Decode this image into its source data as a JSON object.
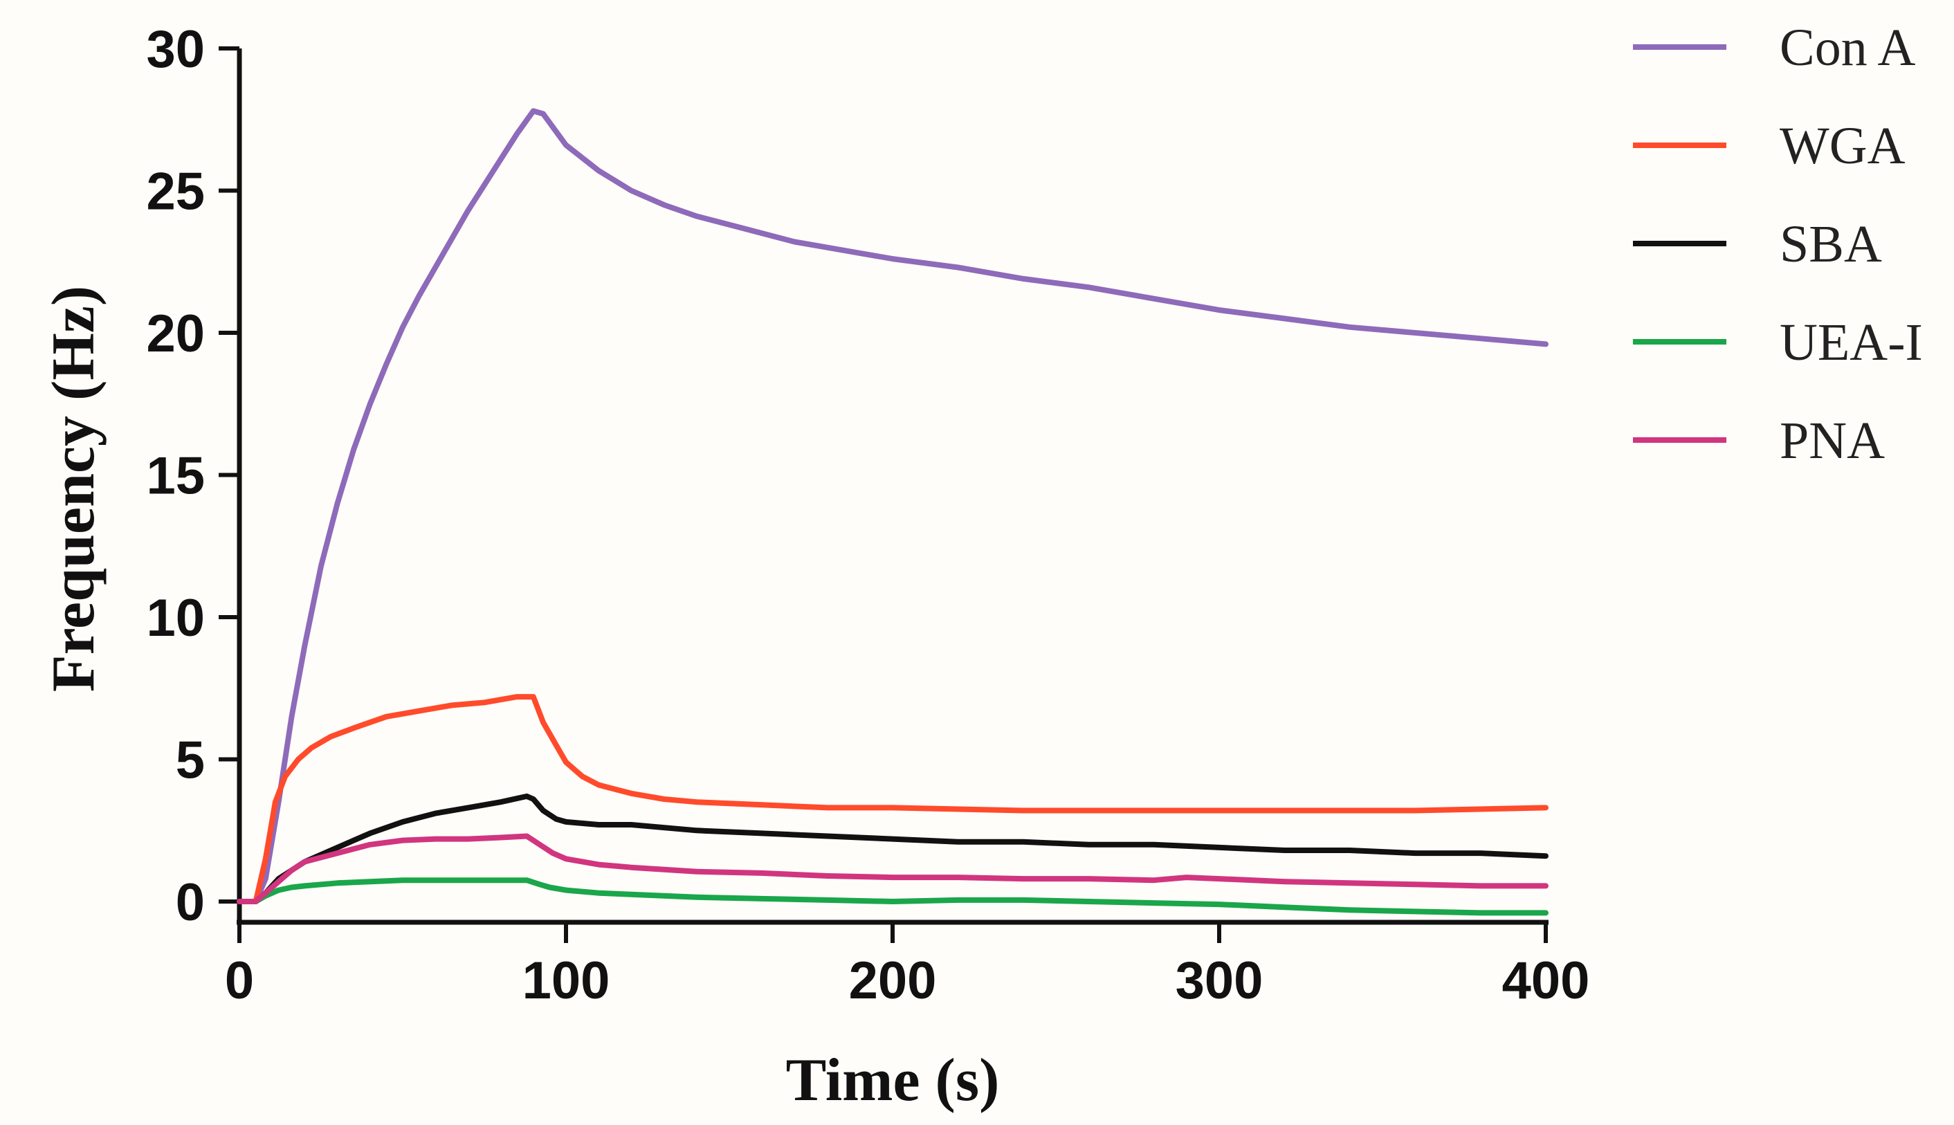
{
  "chart_data": {
    "type": "line",
    "title": "",
    "xlabel": "Time (s)",
    "ylabel": "Frequency (Hz)",
    "xlim": [
      0,
      400
    ],
    "ylim": [
      0,
      30
    ],
    "xticks": [
      0,
      100,
      200,
      300,
      400
    ],
    "yticks": [
      0,
      5,
      10,
      15,
      20,
      25,
      30
    ],
    "xtick_labels": [
      "0",
      "100",
      "200",
      "300",
      "400"
    ],
    "ytick_labels": [
      "0",
      "5",
      "10",
      "15",
      "20",
      "25",
      "30"
    ],
    "grid": false,
    "legend_position": "right",
    "series": [
      {
        "name": "Con A",
        "color": "#8e6aba",
        "points": [
          [
            0,
            0
          ],
          [
            5,
            0
          ],
          [
            8,
            0.8
          ],
          [
            12,
            3.5
          ],
          [
            16,
            6.5
          ],
          [
            20,
            9
          ],
          [
            25,
            11.8
          ],
          [
            30,
            14
          ],
          [
            35,
            15.9
          ],
          [
            40,
            17.5
          ],
          [
            45,
            18.9
          ],
          [
            50,
            20.2
          ],
          [
            55,
            21.3
          ],
          [
            60,
            22.3
          ],
          [
            65,
            23.3
          ],
          [
            70,
            24.3
          ],
          [
            75,
            25.2
          ],
          [
            80,
            26.1
          ],
          [
            85,
            27
          ],
          [
            90,
            27.8
          ],
          [
            93,
            27.7
          ],
          [
            100,
            26.6
          ],
          [
            110,
            25.7
          ],
          [
            120,
            25
          ],
          [
            130,
            24.5
          ],
          [
            140,
            24.1
          ],
          [
            150,
            23.8
          ],
          [
            160,
            23.5
          ],
          [
            170,
            23.2
          ],
          [
            180,
            23
          ],
          [
            190,
            22.8
          ],
          [
            200,
            22.6
          ],
          [
            220,
            22.3
          ],
          [
            240,
            21.9
          ],
          [
            260,
            21.6
          ],
          [
            280,
            21.2
          ],
          [
            300,
            20.8
          ],
          [
            320,
            20.5
          ],
          [
            340,
            20.2
          ],
          [
            360,
            20
          ],
          [
            380,
            19.8
          ],
          [
            400,
            19.6
          ]
        ]
      },
      {
        "name": "WGA",
        "color": "#ff4b2b",
        "points": [
          [
            0,
            0
          ],
          [
            5,
            0
          ],
          [
            8,
            1.5
          ],
          [
            11,
            3.5
          ],
          [
            14,
            4.4
          ],
          [
            18,
            5
          ],
          [
            22,
            5.4
          ],
          [
            28,
            5.8
          ],
          [
            35,
            6.1
          ],
          [
            45,
            6.5
          ],
          [
            55,
            6.7
          ],
          [
            65,
            6.9
          ],
          [
            75,
            7
          ],
          [
            85,
            7.2
          ],
          [
            90,
            7.2
          ],
          [
            93,
            6.3
          ],
          [
            97,
            5.5
          ],
          [
            100,
            4.9
          ],
          [
            105,
            4.4
          ],
          [
            110,
            4.1
          ],
          [
            120,
            3.8
          ],
          [
            130,
            3.6
          ],
          [
            140,
            3.5
          ],
          [
            160,
            3.4
          ],
          [
            180,
            3.3
          ],
          [
            200,
            3.3
          ],
          [
            240,
            3.2
          ],
          [
            280,
            3.2
          ],
          [
            320,
            3.2
          ],
          [
            360,
            3.2
          ],
          [
            400,
            3.3
          ]
        ]
      },
      {
        "name": "SBA",
        "color": "#111111",
        "points": [
          [
            0,
            0
          ],
          [
            5,
            0
          ],
          [
            8,
            0.3
          ],
          [
            12,
            0.8
          ],
          [
            16,
            1.1
          ],
          [
            20,
            1.4
          ],
          [
            30,
            1.9
          ],
          [
            40,
            2.4
          ],
          [
            50,
            2.8
          ],
          [
            60,
            3.1
          ],
          [
            70,
            3.3
          ],
          [
            80,
            3.5
          ],
          [
            88,
            3.7
          ],
          [
            90,
            3.6
          ],
          [
            93,
            3.2
          ],
          [
            97,
            2.9
          ],
          [
            100,
            2.8
          ],
          [
            110,
            2.7
          ],
          [
            120,
            2.7
          ],
          [
            140,
            2.5
          ],
          [
            160,
            2.4
          ],
          [
            180,
            2.3
          ],
          [
            200,
            2.2
          ],
          [
            220,
            2.1
          ],
          [
            240,
            2.1
          ],
          [
            260,
            2
          ],
          [
            280,
            2
          ],
          [
            300,
            1.9
          ],
          [
            320,
            1.8
          ],
          [
            340,
            1.8
          ],
          [
            360,
            1.7
          ],
          [
            380,
            1.7
          ],
          [
            400,
            1.6
          ]
        ]
      },
      {
        "name": "UEA-I",
        "color": "#1aa64a",
        "points": [
          [
            0,
            0
          ],
          [
            5,
            0
          ],
          [
            8,
            0.2
          ],
          [
            12,
            0.4
          ],
          [
            16,
            0.5
          ],
          [
            20,
            0.55
          ],
          [
            30,
            0.65
          ],
          [
            40,
            0.7
          ],
          [
            50,
            0.75
          ],
          [
            60,
            0.75
          ],
          [
            70,
            0.75
          ],
          [
            80,
            0.75
          ],
          [
            88,
            0.75
          ],
          [
            92,
            0.6
          ],
          [
            95,
            0.5
          ],
          [
            100,
            0.4
          ],
          [
            110,
            0.3
          ],
          [
            120,
            0.25
          ],
          [
            140,
            0.15
          ],
          [
            160,
            0.1
          ],
          [
            180,
            0.05
          ],
          [
            200,
            0
          ],
          [
            220,
            0.05
          ],
          [
            240,
            0.05
          ],
          [
            260,
            0
          ],
          [
            280,
            -0.05
          ],
          [
            300,
            -0.1
          ],
          [
            320,
            -0.2
          ],
          [
            340,
            -0.3
          ],
          [
            360,
            -0.35
          ],
          [
            380,
            -0.4
          ],
          [
            400,
            -0.4
          ]
        ]
      },
      {
        "name": "PNA",
        "color": "#d1357f",
        "points": [
          [
            0,
            0
          ],
          [
            5,
            0
          ],
          [
            8,
            0.3
          ],
          [
            12,
            0.7
          ],
          [
            16,
            1.1
          ],
          [
            20,
            1.4
          ],
          [
            30,
            1.7
          ],
          [
            40,
            2
          ],
          [
            50,
            2.15
          ],
          [
            60,
            2.2
          ],
          [
            70,
            2.2
          ],
          [
            80,
            2.25
          ],
          [
            88,
            2.3
          ],
          [
            92,
            2
          ],
          [
            96,
            1.7
          ],
          [
            100,
            1.5
          ],
          [
            110,
            1.3
          ],
          [
            120,
            1.2
          ],
          [
            140,
            1.05
          ],
          [
            160,
            1
          ],
          [
            180,
            0.9
          ],
          [
            200,
            0.85
          ],
          [
            220,
            0.85
          ],
          [
            240,
            0.8
          ],
          [
            260,
            0.8
          ],
          [
            280,
            0.75
          ],
          [
            290,
            0.85
          ],
          [
            300,
            0.8
          ],
          [
            320,
            0.7
          ],
          [
            340,
            0.65
          ],
          [
            360,
            0.6
          ],
          [
            380,
            0.55
          ],
          [
            400,
            0.55
          ]
        ]
      }
    ]
  }
}
